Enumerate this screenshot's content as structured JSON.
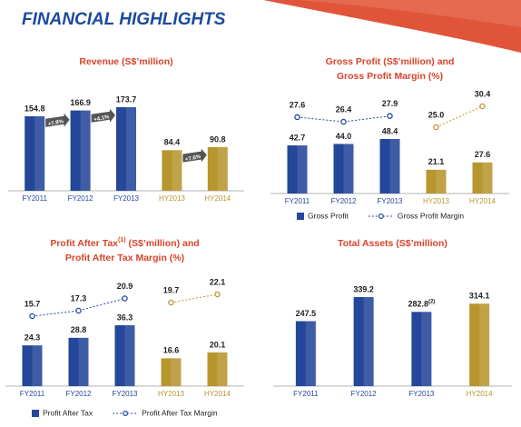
{
  "header": {
    "title": "FINANCIAL HIGHLIGHTS"
  },
  "chart_data": [
    {
      "type": "bar",
      "title_lines": [
        [
          {
            "text": "Revenue (S$’million)"
          }
        ]
      ],
      "categories": [
        "FY2011",
        "FY2012",
        "FY2013",
        "HY2013",
        "HY2014"
      ],
      "series": [
        {
          "values": [
            154.8,
            166.9,
            173.7,
            84.4,
            90.8
          ],
          "value_labels": [
            "154.8",
            "166.9",
            "173.7",
            "84.4",
            "90.8"
          ],
          "colors": [
            "#24479a",
            "#24479a",
            "#24479a",
            "#b8962f",
            "#b8962f"
          ]
        }
      ],
      "annotations": [
        {
          "text": "+7.8%",
          "from": 0,
          "to": 1
        },
        {
          "text": "+4.1%",
          "from": 1,
          "to": 2
        },
        {
          "text": "+7.6%",
          "from": 3,
          "to": 4
        }
      ]
    },
    {
      "type": "combo",
      "title_lines": [
        [
          {
            "text": "Gross Profit (S$’million) and"
          }
        ],
        [
          {
            "text": "Gross Profit Margin (%)"
          }
        ]
      ],
      "categories": [
        "FY2011",
        "FY2012",
        "FY2013",
        "HY2013",
        "HY2014"
      ],
      "series": [
        {
          "name": "Gross Profit",
          "type": "bar",
          "color": "#24479a",
          "values": [
            42.7,
            44.0,
            48.4,
            21.1,
            27.6
          ],
          "value_labels": [
            "42.7",
            "44.0",
            "48.4",
            "21.1",
            "27.6"
          ],
          "colors": [
            "#24479a",
            "#24479a",
            "#24479a",
            "#b8962f",
            "#b8962f"
          ]
        },
        {
          "name": "Gross Profit Margin",
          "type": "line",
          "color": "#24479a",
          "values": [
            27.6,
            26.4,
            27.9,
            25.0,
            30.4
          ],
          "value_labels": [
            "27.6",
            "26.4",
            "27.9",
            "25.0",
            "30.4"
          ],
          "colors": [
            "#24479a",
            "#24479a",
            "#24479a",
            "#b8962f",
            "#b8962f"
          ]
        }
      ]
    },
    {
      "type": "combo",
      "title_lines": [
        [
          {
            "text": "Profit After Tax"
          },
          {
            "text": "(1)",
            "sup": true
          },
          {
            "text": " (S$’million) and"
          }
        ],
        [
          {
            "text": "Profit After Tax Margin (%)"
          }
        ]
      ],
      "categories": [
        "FY2011",
        "FY2012",
        "FY2013",
        "HY2013",
        "HY2014"
      ],
      "series": [
        {
          "name": "Profit After Tax",
          "type": "bar",
          "color": "#24479a",
          "values": [
            24.3,
            28.8,
            36.3,
            16.6,
            20.1
          ],
          "value_labels": [
            "24.3",
            "28.8",
            "36.3",
            "16.6",
            "20.1"
          ],
          "colors": [
            "#24479a",
            "#24479a",
            "#24479a",
            "#b8962f",
            "#b8962f"
          ]
        },
        {
          "name": "Profit After Tax Margin",
          "type": "line",
          "color": "#24479a",
          "values": [
            15.7,
            17.3,
            20.9,
            19.7,
            22.1
          ],
          "value_labels": [
            "15.7",
            "17.3",
            "20.9",
            "19.7",
            "22.1"
          ],
          "colors": [
            "#24479a",
            "#24479a",
            "#24479a",
            "#b8962f",
            "#b8962f"
          ]
        }
      ]
    },
    {
      "type": "bar",
      "title_lines": [
        [
          {
            "text": "Total Assets (S$’million)"
          }
        ]
      ],
      "categories": [
        "FY2011",
        "FY2012",
        "FY2013",
        "HY2014"
      ],
      "series": [
        {
          "values": [
            247.5,
            339.2,
            282.8,
            314.1
          ],
          "value_labels": [
            "247.5",
            "339.2",
            "282.8",
            "314.1"
          ],
          "value_label_superscripts": [
            null,
            null,
            "(2)",
            null
          ],
          "colors": [
            "#24479a",
            "#24479a",
            "#24479a",
            "#b8962f"
          ]
        }
      ]
    }
  ]
}
